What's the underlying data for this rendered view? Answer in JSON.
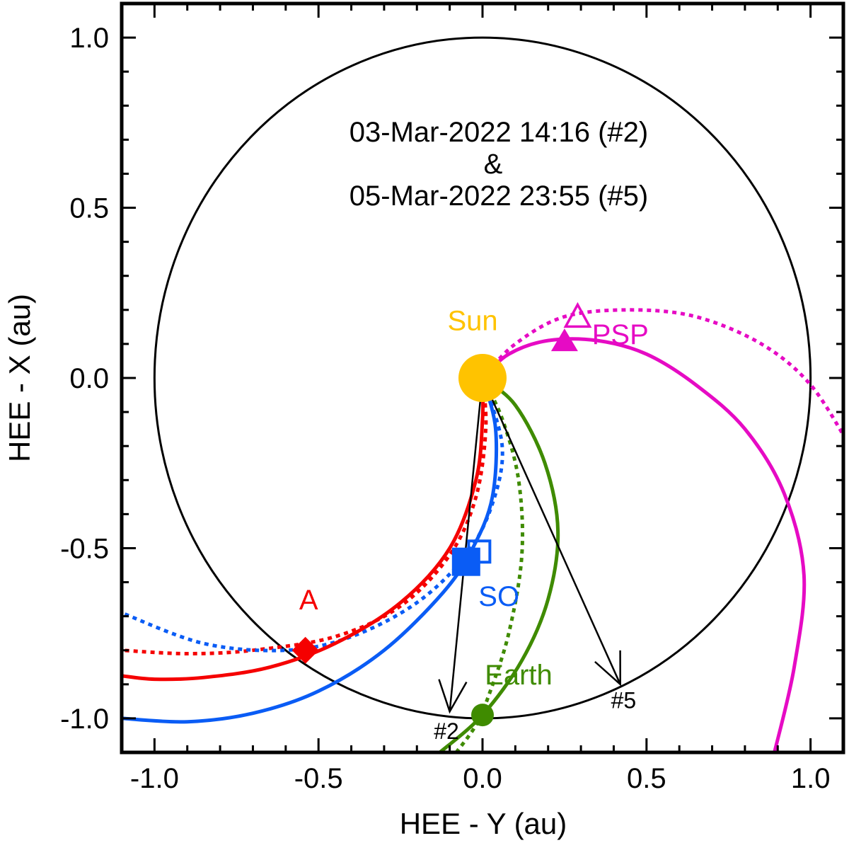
{
  "chart_data": {
    "type": "scatter",
    "title_lines": [
      "03-Mar-2022 14:16 (#2)",
      "&",
      "05-Mar-2022 23:55 (#5)"
    ],
    "xlabel": "HEE - Y (au)",
    "ylabel": "HEE - X (au)",
    "xlim": [
      -1.1,
      1.1
    ],
    "ylim": [
      -1.1,
      1.1
    ],
    "x_ticks": [
      -1.0,
      -0.5,
      0.0,
      0.5,
      1.0
    ],
    "x_tick_labels": [
      "-1.0",
      "-0.5",
      "0.0",
      "0.5",
      "1.0"
    ],
    "y_ticks": [
      -1.0,
      -0.5,
      0.0,
      0.5,
      1.0
    ],
    "y_tick_labels": [
      "-1.0",
      "-0.5",
      "0.0",
      "0.5",
      "1.0"
    ],
    "orbit_circle": {
      "center": [
        0,
        0
      ],
      "radius_au": 1.0,
      "color": "#000000"
    },
    "bodies": [
      {
        "name": "Sun",
        "label": "Sun",
        "x": 0.0,
        "y": 0.0,
        "marker": "circle",
        "color": "#FFC300",
        "label_at": [
          -0.03,
          0.14
        ]
      },
      {
        "name": "Earth",
        "label": "Earth",
        "x": 0.0,
        "y": -0.99,
        "marker": "circle",
        "color": "#3F8B00",
        "label_at": [
          0.11,
          -0.9
        ]
      },
      {
        "name": "SO",
        "label": "SO",
        "x": -0.05,
        "y": -0.54,
        "marker": "square",
        "color": "#0A5CF5",
        "label_at": [
          0.05,
          -0.67
        ]
      },
      {
        "name": "STEREO-A",
        "label": "A",
        "x": -0.54,
        "y": -0.8,
        "marker": "diamond",
        "color": "#F50000",
        "label_at": [
          -0.53,
          -0.68
        ]
      },
      {
        "name": "PSP",
        "label": "PSP",
        "x": 0.25,
        "y": 0.11,
        "marker": "triangle",
        "color": "#E60BC4",
        "label_at": [
          0.42,
          0.1
        ]
      }
    ],
    "open_markers": [
      {
        "name": "SO (#5)",
        "x": -0.01,
        "y": -0.51,
        "marker": "open-square",
        "color": "#0A5CF5"
      },
      {
        "name": "PSP (#5)",
        "x": 0.29,
        "y": 0.18,
        "marker": "open-triangle",
        "color": "#E60BC4"
      }
    ],
    "parker_spirals": [
      {
        "name": "STEREO-A spiral (#2)",
        "color": "#F50000",
        "style": "solid",
        "points": [
          [
            0.0,
            0.0
          ],
          [
            0.0,
            -0.12
          ],
          [
            -0.02,
            -0.3
          ],
          [
            -0.1,
            -0.5
          ],
          [
            -0.25,
            -0.66
          ],
          [
            -0.45,
            -0.78
          ],
          [
            -0.65,
            -0.85
          ],
          [
            -0.85,
            -0.88
          ],
          [
            -1.0,
            -0.885
          ],
          [
            -1.1,
            -0.875
          ]
        ]
      },
      {
        "name": "STEREO-A spiral (#5)",
        "color": "#F50000",
        "style": "dotted",
        "points": [
          [
            0.0,
            0.0
          ],
          [
            0.01,
            -0.15
          ],
          [
            -0.02,
            -0.35
          ],
          [
            -0.1,
            -0.52
          ],
          [
            -0.25,
            -0.67
          ],
          [
            -0.45,
            -0.76
          ],
          [
            -0.7,
            -0.8
          ],
          [
            -0.9,
            -0.81
          ],
          [
            -1.1,
            -0.8
          ]
        ]
      },
      {
        "name": "SO spiral (#2)",
        "color": "#0A5CF5",
        "style": "solid",
        "points": [
          [
            0.0,
            0.0
          ],
          [
            0.04,
            -0.15
          ],
          [
            0.03,
            -0.35
          ],
          [
            -0.03,
            -0.5
          ],
          [
            -0.12,
            -0.63
          ],
          [
            -0.3,
            -0.8
          ],
          [
            -0.5,
            -0.92
          ],
          [
            -0.7,
            -0.985
          ],
          [
            -0.9,
            -1.01
          ],
          [
            -1.1,
            -1.0
          ]
        ]
      },
      {
        "name": "SO spiral (#5)",
        "color": "#0A5CF5",
        "style": "dotted",
        "points": [
          [
            0.0,
            0.0
          ],
          [
            0.06,
            -0.2
          ],
          [
            0.03,
            -0.37
          ],
          [
            -0.05,
            -0.52
          ],
          [
            -0.2,
            -0.66
          ],
          [
            -0.4,
            -0.76
          ],
          [
            -0.6,
            -0.8
          ],
          [
            -0.85,
            -0.78
          ],
          [
            -1.1,
            -0.69
          ]
        ]
      },
      {
        "name": "Earth spiral (#2)",
        "color": "#3F8B00",
        "style": "solid",
        "points": [
          [
            0.0,
            0.0
          ],
          [
            0.1,
            -0.08
          ],
          [
            0.19,
            -0.25
          ],
          [
            0.23,
            -0.45
          ],
          [
            0.2,
            -0.65
          ],
          [
            0.12,
            -0.83
          ],
          [
            0.0,
            -0.99
          ],
          [
            -0.13,
            -1.1
          ]
        ]
      },
      {
        "name": "Earth spiral (#5)",
        "color": "#3F8B00",
        "style": "dotted",
        "points": [
          [
            0.0,
            0.0
          ],
          [
            0.06,
            -0.12
          ],
          [
            0.11,
            -0.3
          ],
          [
            0.12,
            -0.52
          ],
          [
            0.08,
            -0.75
          ],
          [
            0.02,
            -0.93
          ],
          [
            -0.02,
            -1.02
          ],
          [
            -0.08,
            -1.1
          ]
        ]
      },
      {
        "name": "PSP spiral (#2)",
        "color": "#E60BC4",
        "style": "solid",
        "points": [
          [
            0.0,
            0.0
          ],
          [
            0.08,
            0.07
          ],
          [
            0.2,
            0.11
          ],
          [
            0.35,
            0.11
          ],
          [
            0.5,
            0.07
          ],
          [
            0.65,
            -0.02
          ],
          [
            0.8,
            -0.15
          ],
          [
            0.92,
            -0.34
          ],
          [
            0.98,
            -0.58
          ],
          [
            0.95,
            -0.85
          ],
          [
            0.89,
            -1.1
          ]
        ]
      },
      {
        "name": "PSP spiral (#5)",
        "color": "#E60BC4",
        "style": "dotted",
        "points": [
          [
            0.0,
            0.0
          ],
          [
            0.1,
            0.1
          ],
          [
            0.25,
            0.18
          ],
          [
            0.45,
            0.2
          ],
          [
            0.65,
            0.18
          ],
          [
            0.85,
            0.1
          ],
          [
            1.0,
            -0.02
          ],
          [
            1.12,
            -0.2
          ]
        ]
      }
    ],
    "cme_directions": [
      {
        "label": "#2",
        "from": [
          0.0,
          0.0
        ],
        "to": [
          -0.1,
          -0.98
        ],
        "label_at": [
          -0.11,
          -1.06
        ]
      },
      {
        "label": "#5",
        "from": [
          0.0,
          0.0
        ],
        "to": [
          0.42,
          -0.9
        ],
        "label_at": [
          0.43,
          -0.97
        ]
      }
    ]
  }
}
